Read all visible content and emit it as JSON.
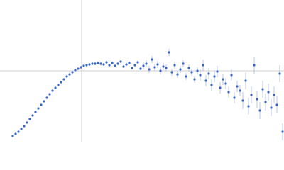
{
  "chart_data": {
    "type": "scatter",
    "color": "#3a66c4",
    "error_color": "#a9bde6",
    "grid_color": "#d0d0d0",
    "xlim": [
      0,
      400
    ],
    "ylim": [
      0,
      200
    ],
    "grid_lines": {
      "x": [
        115
      ],
      "y": [
        100
      ]
    },
    "x": [
      18,
      22,
      26,
      30,
      34,
      38,
      42,
      46,
      50,
      54,
      58,
      62,
      66,
      70,
      74,
      78,
      82,
      86,
      90,
      94,
      98,
      102,
      106,
      110,
      114,
      118,
      122,
      126,
      130,
      134,
      138,
      142,
      146,
      150,
      154,
      158,
      162,
      166,
      170,
      174,
      178,
      182,
      186,
      190,
      194,
      198,
      202,
      206,
      210,
      214,
      218,
      222,
      226,
      230,
      234,
      238,
      242,
      246,
      250,
      254,
      258,
      262,
      266,
      270,
      274,
      278,
      282,
      286,
      290,
      294,
      298,
      302,
      306,
      310,
      314,
      318,
      322,
      326,
      330,
      334,
      338,
      342,
      346,
      350,
      354,
      358,
      362,
      366,
      370,
      374,
      378,
      382,
      386,
      390,
      394,
      398
    ],
    "values": [
      8,
      11,
      14,
      18,
      22,
      27,
      32,
      37,
      42,
      47,
      52,
      57,
      62,
      67,
      72,
      76,
      80,
      84,
      88,
      92,
      95,
      98,
      101,
      103,
      105,
      107,
      108,
      109,
      110,
      110,
      111,
      110,
      109,
      112,
      108,
      111,
      107,
      110,
      113,
      106,
      109,
      111,
      104,
      108,
      112,
      103,
      107,
      110,
      102,
      116,
      105,
      109,
      100,
      106,
      104,
      126,
      98,
      108,
      95,
      102,
      110,
      92,
      104,
      98,
      88,
      100,
      94,
      108,
      86,
      96,
      80,
      92,
      99,
      76,
      88,
      82,
      70,
      94,
      62,
      78,
      72,
      58,
      86,
      50,
      66,
      108,
      60,
      44,
      74,
      56,
      70,
      48,
      66,
      52,
      96,
      14
    ],
    "errors": [
      0.5,
      0.5,
      0.5,
      0.5,
      0.5,
      0.5,
      0.5,
      0.5,
      0.5,
      0.5,
      0.5,
      0.5,
      0.5,
      0.5,
      0.5,
      0.5,
      0.5,
      0.5,
      0.5,
      0.5,
      0.5,
      0.5,
      0.5,
      0.5,
      2,
      2,
      2,
      2,
      2,
      2,
      2,
      2,
      2,
      2,
      2,
      2,
      2,
      2,
      2,
      2,
      2,
      2,
      2,
      2,
      2,
      2,
      5,
      5,
      5,
      5,
      5,
      5,
      5,
      5,
      5,
      5,
      5,
      5,
      5,
      5,
      5,
      5,
      5,
      5,
      5,
      5,
      8,
      8,
      8,
      8,
      8,
      8,
      8,
      8,
      8,
      8,
      8,
      8,
      8,
      8,
      8,
      12,
      12,
      12,
      12,
      12,
      12,
      12,
      12,
      12,
      12,
      12,
      12,
      12,
      12,
      12
    ]
  }
}
